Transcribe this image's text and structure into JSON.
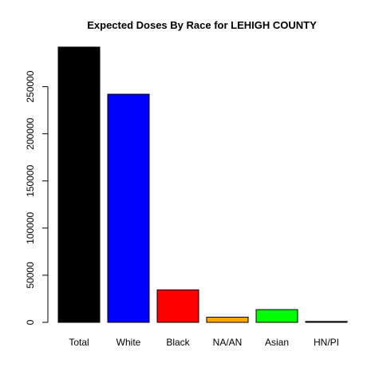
{
  "chart_data": {
    "type": "bar",
    "title": "Expected Doses By Race for LEHIGH COUNTY",
    "xlabel": "",
    "ylabel": "",
    "categories": [
      "Total",
      "White",
      "Black",
      "NA/AN",
      "Asian",
      "HN/PI"
    ],
    "values": [
      292000,
      242000,
      34500,
      5500,
      13500,
      1000
    ],
    "colors": [
      "#000000",
      "#0000ff",
      "#ff0000",
      "#ffa500",
      "#00ff00",
      "#000000"
    ],
    "yticks": [
      0,
      50000,
      100000,
      150000,
      200000,
      250000
    ],
    "ylim": [
      0,
      292000
    ],
    "grid": false,
    "legend": "none"
  }
}
